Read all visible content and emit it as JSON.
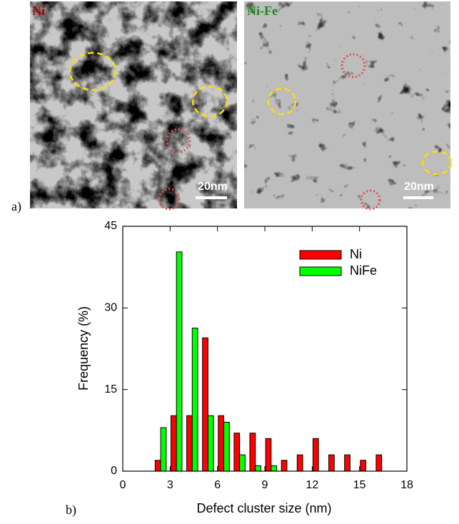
{
  "panels": {
    "a_label": "a)",
    "b_label": "b)",
    "images": [
      {
        "label": "Ni",
        "scale": "20nm"
      },
      {
        "label": "Ni-Fe",
        "scale": "20nm"
      }
    ]
  },
  "chart_data": {
    "type": "bar",
    "xlabel": "Defect cluster size (nm)",
    "ylabel": "Frequency (%)",
    "x": [
      2.5,
      3.5,
      4.5,
      5.5,
      6.5,
      7.5,
      8.5,
      9.5,
      10.5,
      11.5,
      12.5,
      13.5,
      14.5,
      15.5,
      16.5
    ],
    "series": [
      {
        "name": "Ni",
        "color": "#ff0000",
        "values": [
          2,
          10.2,
          10.2,
          24.5,
          10.2,
          7,
          7,
          6,
          2,
          3,
          6,
          3,
          3,
          2,
          3
        ]
      },
      {
        "name": "NiFe",
        "color": "#00ff00",
        "values": [
          8,
          40.3,
          26.3,
          10.2,
          9,
          3,
          1,
          1,
          0,
          0,
          0,
          0,
          0,
          0,
          0
        ]
      }
    ],
    "xlim": [
      0,
      18
    ],
    "xticks": [
      0,
      3,
      6,
      9,
      12,
      15,
      18
    ],
    "ylim": [
      0,
      45
    ],
    "yticks": [
      0,
      15,
      30,
      45
    ],
    "legend": "upper right"
  }
}
